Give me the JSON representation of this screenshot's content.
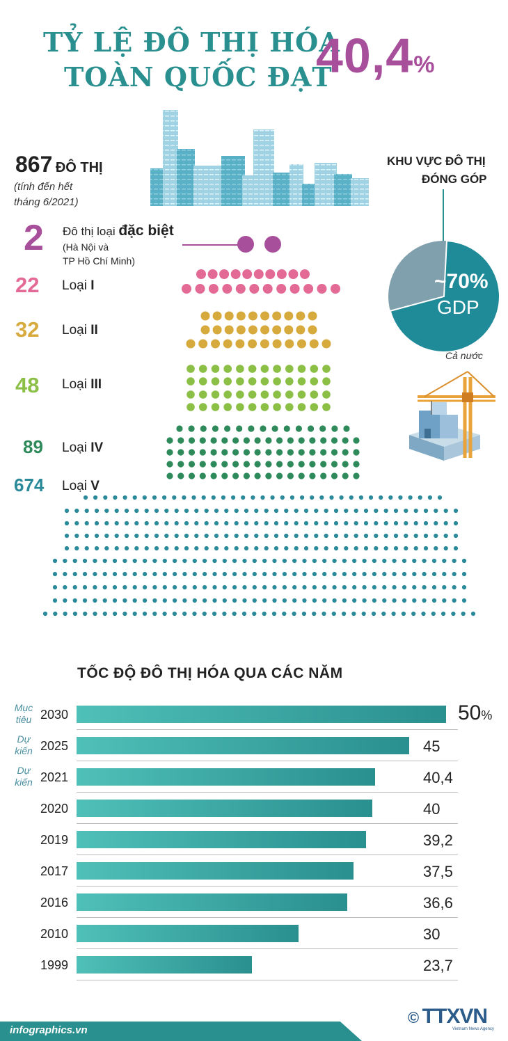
{
  "header": {
    "title_line1": "TỶ LỆ ĐÔ THỊ HÓA",
    "title_line2": "TOÀN QUỐC ĐẠT",
    "rate_value": "40,4",
    "rate_unit": "%"
  },
  "summary": {
    "total_count": "867",
    "total_unit": "ĐÔ THỊ",
    "note_line1": "(tính đến hết",
    "note_line2": "tháng 6/2021)"
  },
  "categories": [
    {
      "count": "2",
      "label_prefix": "Đô thị loại ",
      "label_bold": "đặc biệt",
      "sub1": "(Hà Nội và",
      "sub2": "TP Hồ Chí Minh)",
      "color": "#a84f9c"
    },
    {
      "count": "22",
      "label_prefix": "Loại ",
      "label_bold": "I",
      "color": "#e46a96"
    },
    {
      "count": "32",
      "label_prefix": "Loại ",
      "label_bold": "II",
      "color": "#d7aa3e"
    },
    {
      "count": "48",
      "label_prefix": "Loại ",
      "label_bold": "III",
      "color": "#8cbf45"
    },
    {
      "count": "89",
      "label_prefix": "Loại ",
      "label_bold": "IV",
      "color": "#2e8a5a"
    },
    {
      "count": "674",
      "label_prefix": "Loại ",
      "label_bold": "V",
      "color": "#2a8a9a"
    }
  ],
  "gdp": {
    "title_line1": "KHU VỰC ĐÔ THỊ",
    "title_line2": "ĐÓNG GÓP",
    "value": "~70%",
    "unit": "GDP",
    "caption": "Cả nước",
    "share": 0.7
  },
  "chart_data": {
    "type": "bar",
    "title": "TỐC ĐỘ ĐÔ THỊ HÓA QUA CÁC NĂM",
    "categories": [
      "2030",
      "2025",
      "2021",
      "2020",
      "2019",
      "2017",
      "2016",
      "2010",
      "1999"
    ],
    "values": [
      50,
      45,
      40.4,
      40,
      39.2,
      37.5,
      36.6,
      30,
      23.7
    ],
    "value_labels": [
      "50",
      "45",
      "40,4",
      "40",
      "39,2",
      "37,5",
      "36,6",
      "30",
      "23,7"
    ],
    "first_unit": "%",
    "notes": [
      [
        "Mục",
        "tiêu"
      ],
      [
        "Dự",
        "kiến"
      ],
      [
        "Dự",
        "kiến"
      ],
      null,
      null,
      null,
      null,
      null,
      null
    ],
    "xlabel": "",
    "ylabel": "",
    "grid": false,
    "colors": {
      "bar_start": "#4fc0b8",
      "bar_end": "#2a8f8f"
    }
  },
  "footer": {
    "site": "infographics.vn",
    "copyright_symbol": "©",
    "agency": "TTXVN",
    "agency_sub": "Vietnam News Agency"
  }
}
